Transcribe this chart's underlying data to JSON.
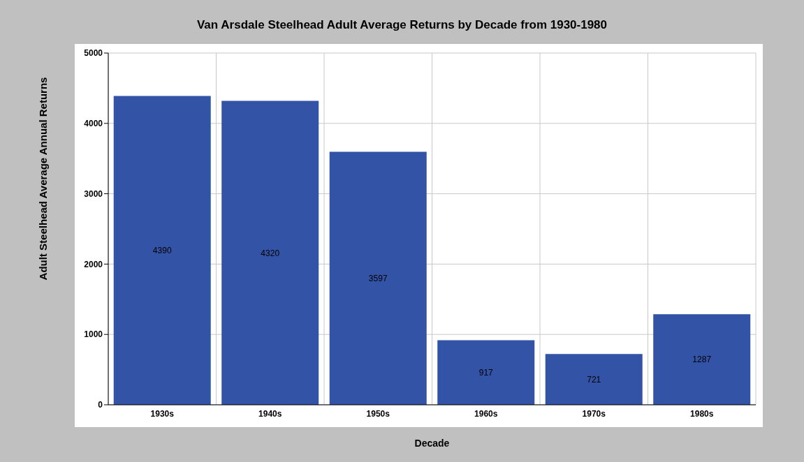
{
  "chart_data": {
    "type": "bar",
    "title": "Van Arsdale Steelhead Adult Average Returns by Decade from 1930-1980",
    "xlabel": "Decade",
    "ylabel": "Adult Steelhead Average Annual Returns",
    "categories": [
      "1930s",
      "1940s",
      "1950s",
      "1960s",
      "1970s",
      "1980s"
    ],
    "values": [
      4390,
      4320,
      3597,
      917,
      721,
      1287
    ],
    "color": "#3353a6",
    "ylim": [
      0,
      5000
    ],
    "yticks": [
      0,
      1000,
      2000,
      3000,
      4000,
      5000
    ],
    "grid": true,
    "data_labels": true
  }
}
